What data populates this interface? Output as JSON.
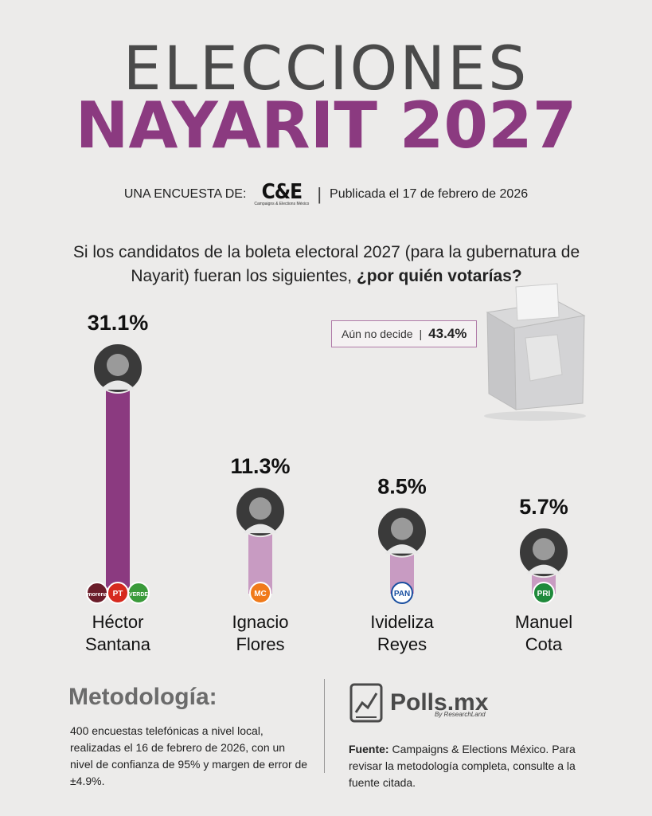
{
  "header": {
    "title_line1": "ELECCIONES",
    "title_line2": "NAYARIT 2027",
    "byline_prefix": "UNA ENCUESTA DE:",
    "byline_logo": "C&E",
    "byline_logo_sub": "Campaigns & Elections México",
    "byline_published": "Publicada el 17 de febrero de 2026"
  },
  "question": {
    "text": "Si los candidatos de la boleta electoral 2027 (para la gubernatura de Nayarit) fueran los siguientes, ",
    "emphasis": "¿por quién votarías?"
  },
  "undecided": {
    "label": "Aún no decide",
    "value": "43.4%"
  },
  "colors": {
    "accent": "#8b3a80",
    "bar_light": "#c89bc2",
    "title_gray": "#4a4a4a"
  },
  "chart_data": {
    "type": "bar",
    "categories": [
      "Héctor Santana",
      "Ignacio Flores",
      "Ivideliza Reyes",
      "Manuel Cota"
    ],
    "values": [
      31.1,
      11.3,
      8.5,
      5.7
    ],
    "value_labels": [
      "31.1%",
      "11.3%",
      "8.5%",
      "5.7%"
    ],
    "name_lines": [
      [
        "Héctor",
        "Santana"
      ],
      [
        "Ignacio",
        "Flores"
      ],
      [
        "Ivideliza",
        "Reyes"
      ],
      [
        "Manuel",
        "Cota"
      ]
    ],
    "parties": [
      [
        "morena",
        "PT",
        "VERDE"
      ],
      [
        "MC"
      ],
      [
        "PAN"
      ],
      [
        "PRI"
      ]
    ],
    "highlight_index": 0,
    "ylim": [
      0,
      31.1
    ]
  },
  "methodology": {
    "title": "Metodología:",
    "text": "400 encuestas telefónicas a nivel local, realizadas el 16 de febrero de 2026, con un nivel de confianza de 95% y margen de error de ±4.9%."
  },
  "source": {
    "logo_name": "Polls.mx",
    "logo_sub": "By ResearchLand",
    "label": "Fuente:",
    "text": " Campaigns & Elections México. Para revisar la metodología completa, consulte a la fuente citada."
  }
}
